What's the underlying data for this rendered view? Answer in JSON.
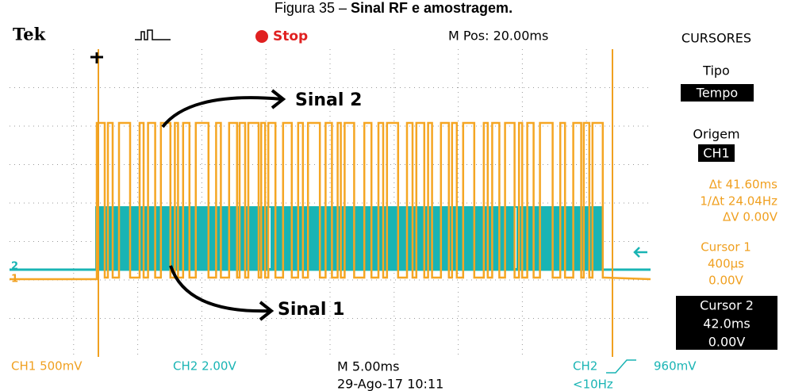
{
  "caption": {
    "label": "Figura 35 –",
    "title": "Sinal RF e amostragem."
  },
  "top_bar": {
    "brand": "Tek",
    "status": "Stop",
    "position": "M Pos: 20.00ms",
    "menu": "CURSORES"
  },
  "side_panel": {
    "type_label": "Tipo",
    "type_value": "Tempo",
    "source_label": "Origem",
    "source_value": "CH1",
    "delta_t": "Δt 41.60ms",
    "inverse_delta_t": "1/Δt 24.04Hz",
    "delta_v": "ΔV 0.00V",
    "cursor1": {
      "title": "Cursor 1",
      "time": "400µs",
      "voltage": "0.00V"
    },
    "cursor2": {
      "title": "Cursor 2",
      "time": "42.0ms",
      "voltage": "0.00V"
    }
  },
  "bottom_bar": {
    "ch1": "CH1 500mV",
    "ch2": "CH2 2.00V",
    "timebase": "M 5.00ms",
    "trigger_source": "CH2",
    "trigger_level": "960mV",
    "date": "29-Ago-17 10:11",
    "trigger_freq": "<10Hz"
  },
  "annotations": [
    "Sinal 2",
    "Sinal 1"
  ],
  "channel_markers": [
    "2",
    "1"
  ]
}
